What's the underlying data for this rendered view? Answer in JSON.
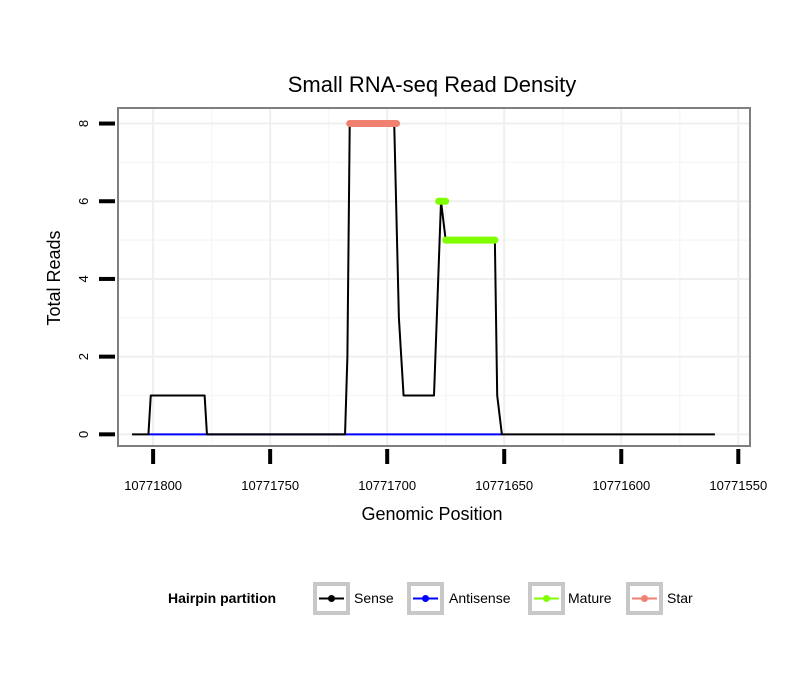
{
  "chart_data": {
    "type": "line",
    "title": "Small RNA-seq Read Density",
    "xlabel": "Genomic Position",
    "ylabel": "Total Reads",
    "xlim": [
      10771815,
      10771545
    ],
    "ylim": [
      -0.3,
      8.4
    ],
    "x_ticks": [
      10771800,
      10771750,
      10771700,
      10771650,
      10771600,
      10771550
    ],
    "x_tick_labels": [
      "10771800",
      "10771750",
      "10771700",
      "10771650",
      "10771600",
      "10771550"
    ],
    "y_ticks": [
      0,
      2,
      4,
      6,
      8
    ],
    "y_tick_labels": [
      "0",
      "2",
      "4",
      "6",
      "8"
    ],
    "grid": true,
    "legend": {
      "title": "Hairpin partition",
      "position": "bottom",
      "entries": [
        "Sense",
        "Antisense",
        "Mature",
        "Star"
      ]
    },
    "series": [
      {
        "name": "Sense",
        "color": "#000000",
        "style": "line",
        "x": [
          10771809,
          10771802,
          10771801,
          10771778,
          10771777,
          10771718,
          10771717,
          10771716,
          10771697,
          10771695,
          10771693,
          10771680,
          10771677,
          10771675,
          10771654,
          10771653,
          10771651,
          10771560
        ],
        "y": [
          0,
          0,
          1,
          1,
          0,
          0,
          2,
          8,
          8,
          3,
          1,
          1,
          6,
          5,
          5,
          1,
          0,
          0
        ]
      },
      {
        "name": "Antisense",
        "color": "#0000ff",
        "style": "line",
        "x": [
          10771802,
          10771651
        ],
        "y": [
          0,
          0
        ]
      },
      {
        "name": "Mature",
        "color": "#7fff00",
        "style": "thick",
        "segments": [
          {
            "x": [
              10771678,
              10771675
            ],
            "y": [
              6,
              6
            ]
          },
          {
            "x": [
              10771675,
              10771654
            ],
            "y": [
              5,
              5
            ]
          }
        ]
      },
      {
        "name": "Star",
        "color": "#f08070",
        "style": "thick",
        "segments": [
          {
            "x": [
              10771716,
              10771696
            ],
            "y": [
              8,
              8
            ]
          }
        ]
      }
    ]
  }
}
